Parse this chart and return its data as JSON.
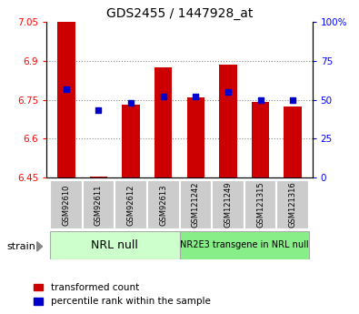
{
  "title": "GDS2455 / 1447928_at",
  "samples": [
    "GSM92610",
    "GSM92611",
    "GSM92612",
    "GSM92613",
    "GSM121242",
    "GSM121249",
    "GSM121315",
    "GSM121316"
  ],
  "transformed_counts": [
    7.05,
    6.455,
    6.73,
    6.875,
    6.76,
    6.885,
    6.74,
    6.725
  ],
  "percentile_ranks": [
    57,
    43,
    48,
    52,
    52,
    55,
    50,
    50
  ],
  "ymin": 6.45,
  "ymax": 7.05,
  "yticks": [
    6.45,
    6.6,
    6.75,
    6.9,
    7.05
  ],
  "ytick_labels": [
    "6.45",
    "6.6",
    "6.75",
    "6.9",
    "7.05"
  ],
  "right_yticks": [
    0,
    25,
    50,
    75,
    100
  ],
  "right_ytick_labels": [
    "0",
    "25",
    "50",
    "75",
    "100%"
  ],
  "bar_color": "#cc0000",
  "dot_color": "#0000cc",
  "bar_width": 0.55,
  "grid_lines": [
    6.6,
    6.75,
    6.9
  ],
  "grid_color": "#888888",
  "baseline": 6.45,
  "group1_label": "NRL null",
  "group1_color": "#ccffcc",
  "group2_label": "NR2E3 transgene in NRL null",
  "group2_color": "#88ee88",
  "tick_bg_color": "#cccccc",
  "legend_label1": "transformed count",
  "legend_label2": "percentile rank within the sample",
  "strain_label": "strain"
}
